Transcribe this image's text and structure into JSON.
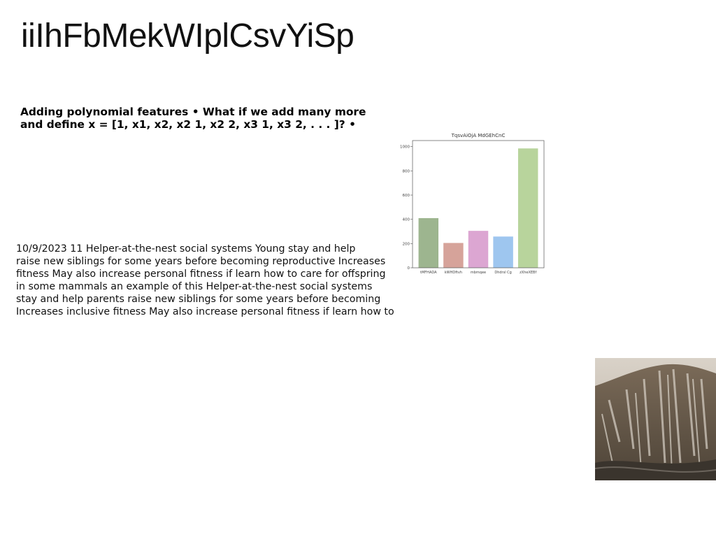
{
  "page": {
    "title": "iiIhFbMekWIplCsvYiSp"
  },
  "subheading": {
    "lines": [
      "Adding polynomial features • What if we add many more",
      "and define x = [1, x1, x2, x2 1, x2 2, x3 1, x3 2, . . . ]? •"
    ]
  },
  "body_text": {
    "lines": [
      "10/9/2023 11 Helper-at-the-nest social systems Young stay and help",
      "raise new siblings for some years before becoming reproductive Increases",
      "fitness May also increase personal fitness if learn how to care for offspring",
      "in some mammals an example of this Helper-at-the-nest social systems",
      "stay and help parents raise new siblings for some years before becoming",
      "Increases inclusive fitness May also increase personal fitness if learn how to"
    ]
  },
  "chart_data": {
    "type": "bar",
    "title": "TqsvAiOjA MdGEhCnC",
    "xlabel": "",
    "ylabel": "",
    "categories": [
      "tMFHADA",
      "kWHDftvh",
      "mbmqee",
      "Dhdrsl Cg",
      "zXheXEBf"
    ],
    "values": [
      410,
      205,
      305,
      258,
      985
    ],
    "colors": [
      "#9db58f",
      "#d6a39a",
      "#dca6d2",
      "#9ec6ef",
      "#b8d49c"
    ],
    "yticks": [
      0,
      200,
      400,
      600,
      800,
      1000
    ],
    "ylim": [
      0,
      1050
    ],
    "grid": false,
    "legend": "none"
  },
  "photo": {
    "icon": "mountain-photo"
  }
}
